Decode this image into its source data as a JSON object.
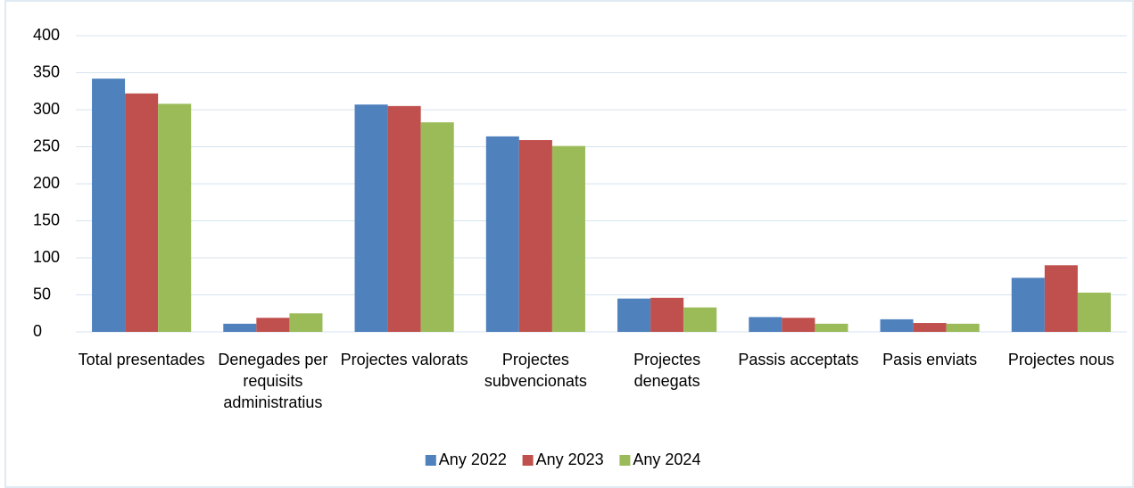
{
  "chart_data": {
    "type": "bar",
    "categories": [
      "Total presentades",
      "Denegades per requisits administratius",
      "Projectes valorats",
      "Projectes subvencionats",
      "Projectes denegats",
      "Passis acceptats",
      "Pasis enviats",
      "Projectes nous"
    ],
    "series": [
      {
        "name": "Any 2022",
        "color": "#4f81bd",
        "values": [
          342,
          11,
          307,
          264,
          45,
          20,
          17,
          73
        ]
      },
      {
        "name": "Any 2023",
        "color": "#c0504d",
        "values": [
          322,
          19,
          305,
          259,
          46,
          19,
          12,
          90
        ]
      },
      {
        "name": "Any 2024",
        "color": "#9bbb59",
        "values": [
          308,
          25,
          283,
          251,
          33,
          11,
          11,
          53
        ]
      }
    ],
    "ylim": [
      0,
      400
    ],
    "yticks": [
      0,
      50,
      100,
      150,
      200,
      250,
      300,
      350,
      400
    ],
    "grid": true,
    "legend": "bottom"
  }
}
